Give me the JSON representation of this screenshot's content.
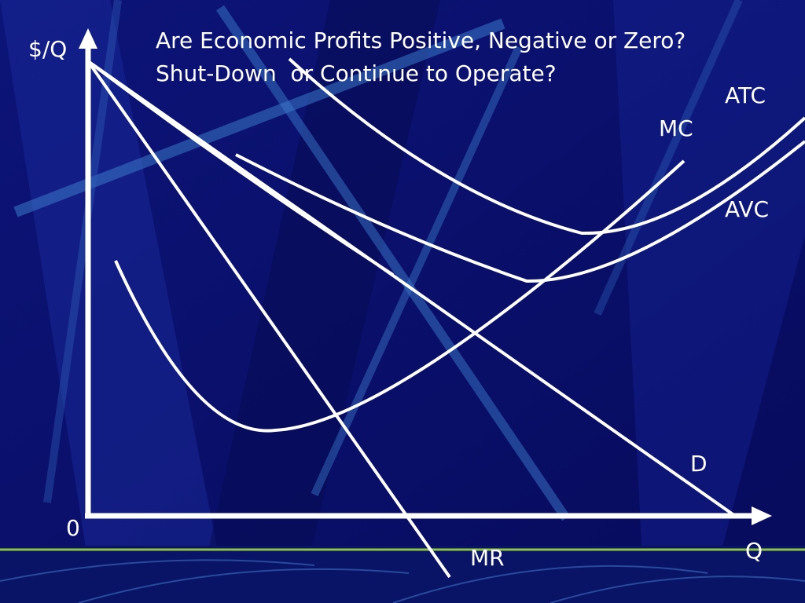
{
  "title": [
    "Are Economic Profits Positive, Negative or Zero?",
    "Shut-Down  or Continue to Operate?"
  ],
  "axes": {
    "y_label": "$/Q",
    "x_label": "Q",
    "origin": "0"
  },
  "curves": [
    {
      "label": "ATC"
    },
    {
      "label": "MC"
    },
    {
      "label": "AVC"
    },
    {
      "label": "D"
    },
    {
      "label": "MR"
    }
  ]
}
